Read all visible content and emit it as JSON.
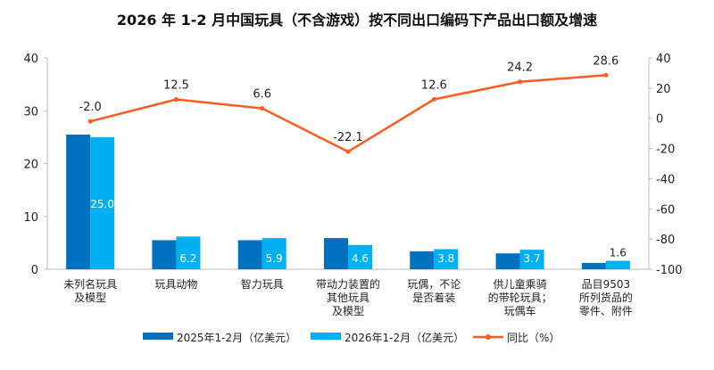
{
  "chart_data": {
    "type": "bar",
    "title": "2026 年 1-2 月中国玩具（不含游戏）按不同出口编码下产品出口额及增速",
    "categories": [
      [
        "未列名玩具",
        "及模型"
      ],
      [
        "玩具动物"
      ],
      [
        "智力玩具"
      ],
      [
        "带动力装置的",
        "其他玩具",
        "及模型"
      ],
      [
        "玩偶，不论",
        "是否着装"
      ],
      [
        "供儿童乘骑",
        "的带轮玩具；",
        "玩偶车"
      ],
      [
        "品目9503",
        "所列货品的",
        "零件、附件"
      ]
    ],
    "series": [
      {
        "name": "2025年1-2月（亿美元）",
        "type": "bar",
        "axis": "left",
        "color": "#0070C0",
        "values": [
          25.5,
          5.5,
          5.5,
          5.9,
          3.4,
          3.0,
          1.2
        ],
        "labels_shown": false
      },
      {
        "name": "2026年1-2月（亿美元）",
        "type": "bar",
        "axis": "left",
        "color": "#00B0F0",
        "values": [
          25.0,
          6.2,
          5.9,
          4.6,
          3.8,
          3.7,
          1.6
        ],
        "labels_shown": true
      },
      {
        "name": "同比（%）",
        "type": "line",
        "axis": "right",
        "color": "#FF5A1F",
        "values": [
          -2.0,
          12.5,
          6.6,
          -22.1,
          12.6,
          24.2,
          28.6
        ],
        "labels_shown": true
      }
    ],
    "ylim_left": [
      0,
      40
    ],
    "yticks_left": [
      0,
      10,
      20,
      30,
      40
    ],
    "ylim_right": [
      -100,
      40
    ],
    "yticks_right": [
      -100,
      -80,
      -60,
      -40,
      -20,
      0,
      20,
      40
    ],
    "grid": false,
    "legend_position": "bottom"
  }
}
